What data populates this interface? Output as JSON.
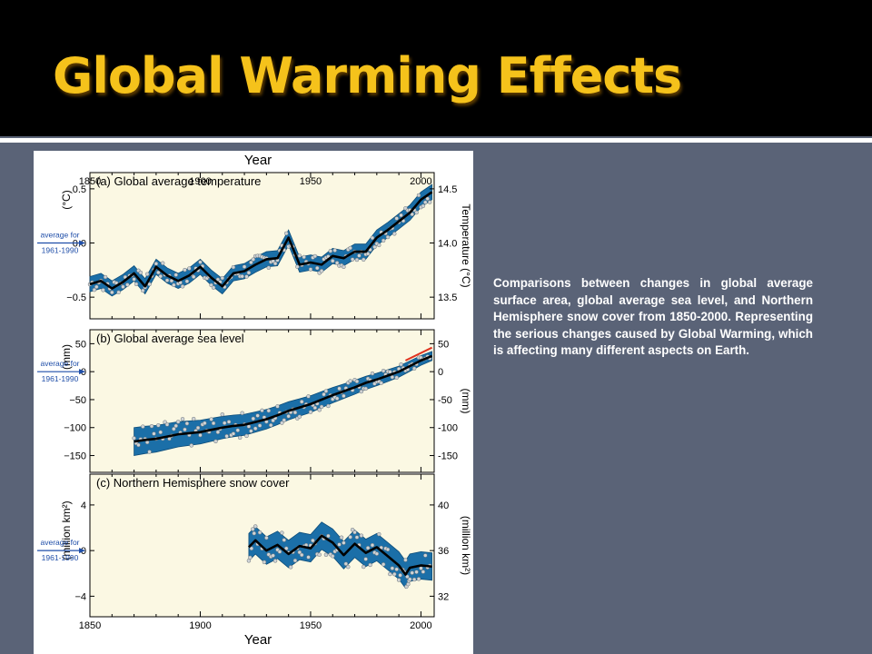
{
  "slide": {
    "title": "Global Warming Effects",
    "caption": "Comparisons between changes in global average surface area, global average sea level, and Northern Hemisphere snow cover from 1850-2000. Representing the serious changes caused by Global Warming, which is affecting many different aspects on Earth.",
    "colors": {
      "title": "#f5c21b",
      "background": "#5a6377",
      "header": "#000000",
      "band": "#1b6fa8",
      "plot_bg": "#fbf8e3"
    }
  },
  "figure": {
    "top_axis_label": "Year",
    "bottom_axis_label": "Year",
    "x_ticks": [
      "1850",
      "1900",
      "1950",
      "2000"
    ],
    "reference_label": [
      "average for",
      "1961-1990"
    ]
  },
  "chart_data": [
    {
      "type": "line",
      "title": "(a) Global average temperature",
      "ylabel": "(°C)",
      "ylabel_right": "Temperature (°C)",
      "xlim": [
        1850,
        2006
      ],
      "ylim": [
        -0.7,
        0.65
      ],
      "ylim_right": [
        13.3,
        14.65
      ],
      "y_ticks": [
        "0.5",
        "0.0",
        "−0.5"
      ],
      "y_ticks_right": [
        "14.5",
        "14.0",
        "13.5"
      ],
      "band_halfwidth": 0.07,
      "series": [
        {
          "x": [
            1850,
            1855,
            1860,
            1865,
            1870,
            1875,
            1880,
            1885,
            1890,
            1895,
            1900,
            1905,
            1910,
            1915,
            1920,
            1925,
            1930,
            1935,
            1940,
            1945,
            1950,
            1955,
            1960,
            1965,
            1970,
            1975,
            1980,
            1985,
            1990,
            1995,
            2000,
            2005
          ],
          "y": [
            -0.38,
            -0.35,
            -0.42,
            -0.36,
            -0.28,
            -0.4,
            -0.22,
            -0.3,
            -0.35,
            -0.3,
            -0.22,
            -0.32,
            -0.4,
            -0.28,
            -0.26,
            -0.2,
            -0.15,
            -0.14,
            0.05,
            -0.2,
            -0.18,
            -0.2,
            -0.12,
            -0.14,
            -0.08,
            -0.08,
            0.05,
            0.12,
            0.2,
            0.28,
            0.4,
            0.47
          ]
        }
      ]
    },
    {
      "type": "line",
      "title": "(b) Global average sea level",
      "ylabel": "(mm)",
      "ylabel_right": "(mm)",
      "xlim": [
        1850,
        2006
      ],
      "ylim": [
        -180,
        75
      ],
      "y_ticks": [
        "50",
        "0",
        "−50",
        "−100",
        "−150"
      ],
      "y_ticks_right": [
        "50",
        "0",
        "-50",
        "-100",
        "-150"
      ],
      "band_halfwidth_start": 25,
      "band_halfwidth_end": 8,
      "series": [
        {
          "x": [
            1870,
            1875,
            1880,
            1885,
            1890,
            1895,
            1900,
            1905,
            1910,
            1915,
            1920,
            1925,
            1930,
            1935,
            1940,
            1945,
            1950,
            1955,
            1960,
            1965,
            1970,
            1975,
            1980,
            1985,
            1990,
            1995,
            2000,
            2005
          ],
          "y": [
            -125,
            -122,
            -120,
            -116,
            -112,
            -110,
            -108,
            -104,
            -100,
            -97,
            -95,
            -90,
            -85,
            -78,
            -70,
            -64,
            -58,
            -50,
            -42,
            -35,
            -28,
            -20,
            -14,
            -7,
            0,
            10,
            20,
            28
          ]
        }
      ],
      "satellite_segment": {
        "x": [
          1993,
          2005
        ],
        "y": [
          20,
          43
        ]
      }
    },
    {
      "type": "line",
      "title": "(c) Northern Hemisphere snow cover",
      "ylabel": "(million km²)",
      "ylabel_right": "(million km²)",
      "xlim": [
        1850,
        2006
      ],
      "ylim": [
        -5.8,
        6.7
      ],
      "y_ticks": [
        "4",
        "0",
        "−4"
      ],
      "y_ticks_right": [
        "40",
        "36",
        "32"
      ],
      "band_halfwidth": 1.2,
      "series": [
        {
          "x": [
            1922,
            1925,
            1930,
            1935,
            1940,
            1945,
            1950,
            1955,
            1960,
            1965,
            1970,
            1975,
            1980,
            1985,
            1990,
            1993,
            1995,
            2000,
            2005
          ],
          "y": [
            0.3,
            0.9,
            0.0,
            0.5,
            -0.3,
            0.4,
            0.2,
            1.3,
            0.7,
            -0.4,
            0.6,
            -0.2,
            0.3,
            -0.5,
            -1.3,
            -2.1,
            -1.5,
            -1.3,
            -1.4
          ]
        }
      ]
    }
  ]
}
